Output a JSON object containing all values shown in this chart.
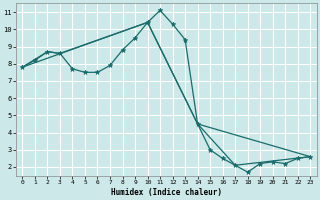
{
  "xlabel": "Humidex (Indice chaleur)",
  "bg_color": "#cce8e8",
  "grid_color": "#ffffff",
  "line_color": "#1a6b6b",
  "line1_x": [
    0,
    1,
    2,
    3,
    4,
    5,
    6,
    7,
    8,
    9,
    10,
    11,
    12,
    13,
    14,
    15,
    16,
    17,
    18,
    19,
    20,
    21,
    22,
    23
  ],
  "line1_y": [
    7.8,
    8.2,
    8.7,
    8.6,
    7.7,
    7.5,
    7.5,
    7.9,
    8.8,
    9.5,
    10.4,
    11.1,
    10.3,
    9.4,
    4.5,
    3.0,
    2.5,
    2.1,
    1.7,
    2.2,
    2.3,
    2.2,
    2.5,
    2.6
  ],
  "line2_x": [
    0,
    2,
    3,
    10,
    14,
    23
  ],
  "line2_y": [
    7.8,
    8.7,
    8.6,
    10.4,
    4.5,
    2.6
  ],
  "line3_x": [
    0,
    10,
    14,
    17,
    23
  ],
  "line3_y": [
    7.8,
    10.4,
    4.5,
    2.1,
    2.6
  ],
  "xlim": [
    -0.5,
    23.5
  ],
  "ylim": [
    1.5,
    11.5
  ],
  "xticks": [
    0,
    1,
    2,
    3,
    4,
    5,
    6,
    7,
    8,
    9,
    10,
    11,
    12,
    13,
    14,
    15,
    16,
    17,
    18,
    19,
    20,
    21,
    22,
    23
  ],
  "yticks": [
    2,
    3,
    4,
    5,
    6,
    7,
    8,
    9,
    10,
    11
  ]
}
